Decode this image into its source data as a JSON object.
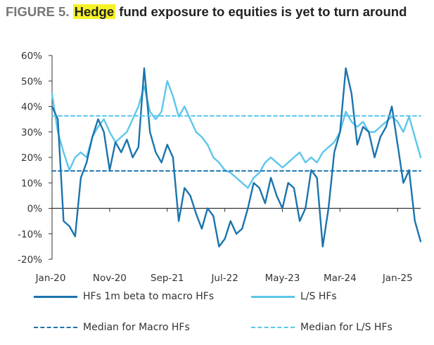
{
  "title": {
    "figure_label": "FIGURE 5.",
    "highlight": "Hedge",
    "rest": "fund exposure to equities is yet to turn around"
  },
  "colors": {
    "dark_blue": "#1b74ad",
    "light_blue": "#5cc6ea",
    "axis": "#333333",
    "highlight": "#f7f228"
  },
  "chart_data": {
    "type": "line",
    "title": "Hedge fund exposure to equities is yet to turn around",
    "x_tick_labels": [
      "Jan-20",
      "Nov-20",
      "Sep-21",
      "Jul-22",
      "May-23",
      "Mar-24",
      "Jan-25"
    ],
    "x_range": [
      "Jan-20",
      "May-25"
    ],
    "y_tick_labels": [
      "60%",
      "50%",
      "40%",
      "30%",
      "20%",
      "10%",
      "0%",
      "-10%",
      "-20%"
    ],
    "ylim": [
      -20,
      60
    ],
    "grid": false,
    "legend_position": "bottom",
    "series": [
      {
        "name": "HFs 1m beta to macro HFs",
        "color": "#1b74ad",
        "style": "solid",
        "x": [
          "Jan-20",
          "Feb-20",
          "Mar-20",
          "Apr-20",
          "May-20",
          "Jun-20",
          "Jul-20",
          "Aug-20",
          "Sep-20",
          "Oct-20",
          "Nov-20",
          "Dec-20",
          "Jan-21",
          "Feb-21",
          "Mar-21",
          "Apr-21",
          "May-21",
          "Jun-21",
          "Jul-21",
          "Aug-21",
          "Sep-21",
          "Oct-21",
          "Nov-21",
          "Dec-21",
          "Jan-22",
          "Feb-22",
          "Mar-22",
          "Apr-22",
          "May-22",
          "Jun-22",
          "Jul-22",
          "Aug-22",
          "Sep-22",
          "Oct-22",
          "Nov-22",
          "Dec-22",
          "Jan-23",
          "Feb-23",
          "Mar-23",
          "Apr-23",
          "May-23",
          "Jun-23",
          "Jul-23",
          "Aug-23",
          "Sep-23",
          "Oct-23",
          "Nov-23",
          "Dec-23",
          "Jan-24",
          "Feb-24",
          "Mar-24",
          "Apr-24",
          "May-24",
          "Jun-24",
          "Jul-24",
          "Aug-24",
          "Sep-24",
          "Oct-24",
          "Nov-24",
          "Dec-24",
          "Jan-25",
          "Feb-25",
          "Mar-25",
          "Apr-25",
          "May-25"
        ],
        "y": [
          40,
          35,
          -5,
          -7,
          -11,
          12,
          18,
          28,
          35,
          30,
          15,
          26,
          22,
          27,
          20,
          24,
          55,
          30,
          22,
          18,
          25,
          20,
          -5,
          8,
          5,
          -2,
          -8,
          0,
          -3,
          -15,
          -12,
          -5,
          -10,
          -8,
          0,
          10,
          8,
          2,
          12,
          5,
          0,
          10,
          8,
          -5,
          0,
          15,
          12,
          -15,
          0,
          22,
          30,
          55,
          45,
          25,
          32,
          30,
          20,
          28,
          32,
          40,
          25,
          10,
          15,
          -5,
          -13
        ]
      },
      {
        "name": "L/S HFs",
        "color": "#5cc6ea",
        "style": "solid",
        "x": [
          "Jan-20",
          "Feb-20",
          "Mar-20",
          "Apr-20",
          "May-20",
          "Jun-20",
          "Jul-20",
          "Aug-20",
          "Sep-20",
          "Oct-20",
          "Nov-20",
          "Dec-20",
          "Jan-21",
          "Feb-21",
          "Mar-21",
          "Apr-21",
          "May-21",
          "Jun-21",
          "Jul-21",
          "Aug-21",
          "Sep-21",
          "Oct-21",
          "Nov-21",
          "Dec-21",
          "Jan-22",
          "Feb-22",
          "Mar-22",
          "Apr-22",
          "May-22",
          "Jun-22",
          "Jul-22",
          "Aug-22",
          "Sep-22",
          "Oct-22",
          "Nov-22",
          "Dec-22",
          "Jan-23",
          "Feb-23",
          "Mar-23",
          "Apr-23",
          "May-23",
          "Jun-23",
          "Jul-23",
          "Aug-23",
          "Sep-23",
          "Oct-23",
          "Nov-23",
          "Dec-23",
          "Jan-24",
          "Feb-24",
          "Mar-24",
          "Apr-24",
          "May-24",
          "Jun-24",
          "Jul-24",
          "Aug-24",
          "Sep-24",
          "Oct-24",
          "Nov-24",
          "Dec-24",
          "Jan-25",
          "Feb-25",
          "Mar-25",
          "Apr-25",
          "May-25"
        ],
        "y": [
          45,
          30,
          22,
          15,
          20,
          22,
          20,
          28,
          32,
          35,
          30,
          26,
          28,
          30,
          35,
          40,
          48,
          38,
          35,
          38,
          50,
          44,
          36,
          40,
          35,
          30,
          28,
          25,
          20,
          18,
          15,
          14,
          12,
          10,
          8,
          12,
          14,
          18,
          20,
          18,
          16,
          18,
          20,
          22,
          18,
          20,
          18,
          22,
          24,
          26,
          30,
          38,
          34,
          32,
          34,
          30,
          30,
          32,
          34,
          36,
          34,
          30,
          36,
          28,
          20
        ]
      },
      {
        "name": "Median for Macro HFs",
        "color": "#1b74ad",
        "style": "dashed",
        "x": [
          "Jan-20",
          "May-25"
        ],
        "y": [
          14.7,
          14.7
        ]
      },
      {
        "name": "Median for L/S HFs",
        "color": "#5cc6ea",
        "style": "dashed",
        "x": [
          "Jan-20",
          "May-25"
        ],
        "y": [
          36.3,
          36.3
        ]
      }
    ]
  }
}
